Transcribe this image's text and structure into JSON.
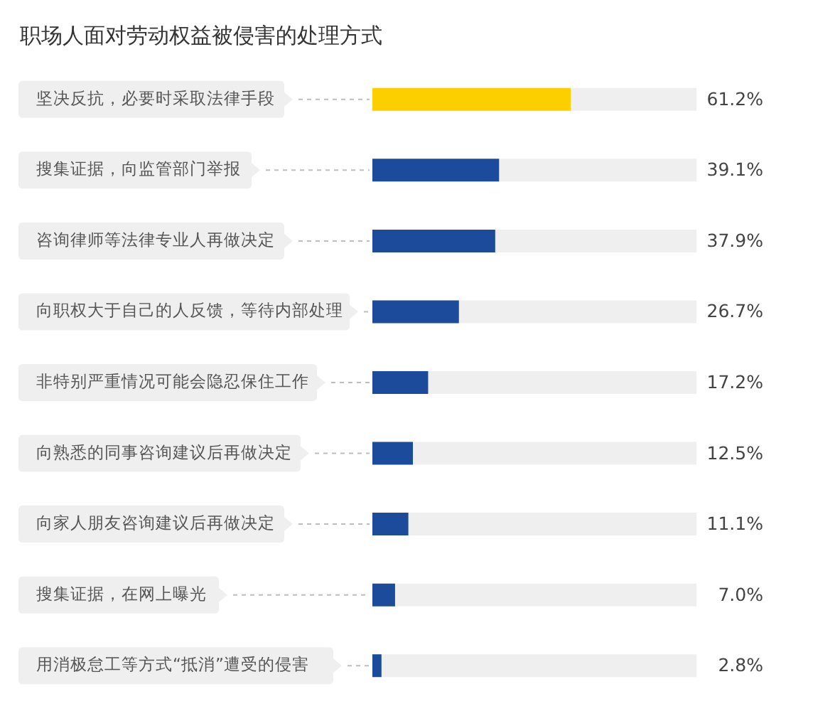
{
  "chart_data": {
    "type": "bar",
    "orientation": "horizontal",
    "title": "职场人面对劳动权益被侵害的处理方式",
    "categories": [
      "坚决反抗，必要时采取法律手段",
      "搜集证据，向监管部门举报",
      "咨询律师等法律专业人再做决定",
      "向职权大于自己的人反馈，等待内部处理",
      "非特别严重情况可能会隐忍保住工作",
      "向熟悉的同事咨询建议后再做决定",
      "向家人朋友咨询建议后再做决定",
      "搜集证据，在网上曝光",
      "用消极怠工等方式“抵消”遭受的侵害"
    ],
    "values": [
      61.2,
      39.1,
      37.9,
      26.7,
      17.2,
      12.5,
      11.1,
      7.0,
      2.8
    ],
    "colors": [
      "#fcd000",
      "#1c4b9c",
      "#1c4b9c",
      "#1c4b9c",
      "#1c4b9c",
      "#1c4b9c",
      "#1c4b9c",
      "#1c4b9c",
      "#1c4b9c"
    ],
    "value_labels": [
      "61.2%",
      "39.1%",
      "37.9%",
      "26.7%",
      "17.2%",
      "12.5%",
      "11.1%",
      "7.0%",
      "2.8%"
    ],
    "xlim": [
      0,
      100
    ],
    "tick_labels": "y"
  }
}
